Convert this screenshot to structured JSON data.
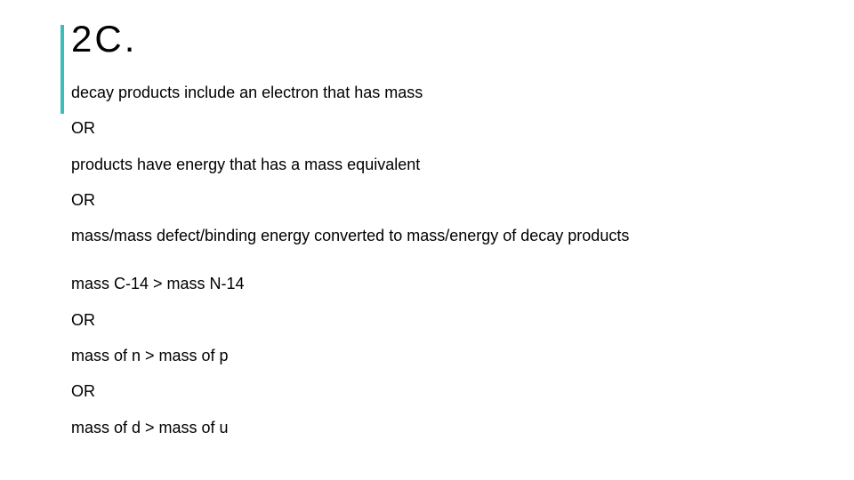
{
  "accent_color": "#3ebdb8",
  "text_color": "#000000",
  "background_color": "#ffffff",
  "title": "2C.",
  "title_fontsize": 42,
  "title_letter_spacing": 3,
  "body_fontsize": 18,
  "lines": {
    "l1": "decay products include an electron that has mass",
    "l2": "OR",
    "l3": "products have energy that has a mass equivalent",
    "l4": "OR",
    "l5": "mass/mass defect/binding energy converted to mass/energy of decay products",
    "l6": "mass C-14 > mass N-14",
    "l7": "OR",
    "l8": "mass of n > mass of p",
    "l9": "OR",
    "l10": "mass of d > mass of u"
  }
}
